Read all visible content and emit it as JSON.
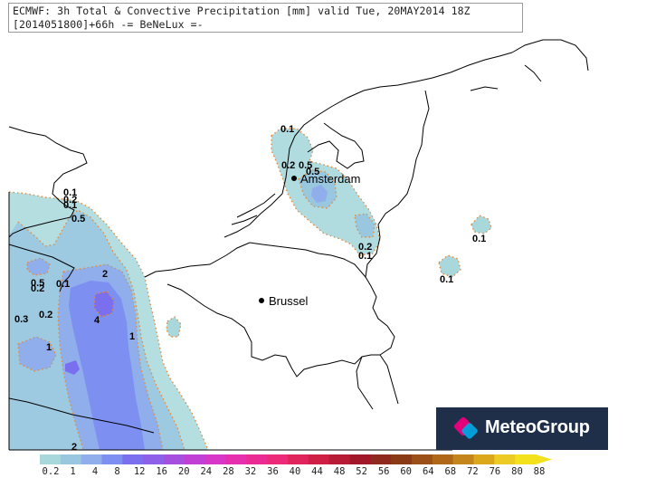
{
  "title": {
    "line1": "ECMWF: 3h Total & Convective Precipitation [mm] valid Tue, 20MAY2014 18Z",
    "line2": "[2014051800]+66h -= BeNeLux =-"
  },
  "cities": [
    {
      "name": "Amsterdam"
    },
    {
      "name": "Brussel"
    }
  ],
  "contour_labels": [
    "0.1",
    "0.2",
    "0.5",
    "0.2",
    "0.5",
    "0.1",
    "0.1",
    "0.2",
    "0.1",
    "0.1",
    "0.1",
    "0.2",
    "0.5",
    "0.5",
    "0.1",
    "0.2",
    "0.3",
    "2",
    "4",
    "1",
    "1",
    "2"
  ],
  "legend": {
    "ticks": [
      "0.2",
      "1",
      "4",
      "8",
      "12",
      "16",
      "20",
      "24",
      "28",
      "32",
      "36",
      "40",
      "44",
      "48",
      "52",
      "56",
      "60",
      "64",
      "68",
      "72",
      "76",
      "80",
      "88"
    ],
    "colors": [
      "#a8d8dc",
      "#99c7e0",
      "#8faeeb",
      "#7d8ff0",
      "#7a6fee",
      "#8e5fe8",
      "#a64fdf",
      "#c13fd5",
      "#d836c6",
      "#e52fae",
      "#ec2a94",
      "#ec2a78",
      "#e0245c",
      "#cf1f45",
      "#b81b35",
      "#a0182a",
      "#8e2a1e",
      "#8a3a14",
      "#9a5016",
      "#b06818",
      "#c4861a",
      "#dba81c",
      "#eccb22",
      "#f3e11c"
    ]
  },
  "brand": {
    "name": "MeteoGroup",
    "colors": [
      "#e3007a",
      "#00a3e0",
      "#1f2f4a"
    ]
  }
}
